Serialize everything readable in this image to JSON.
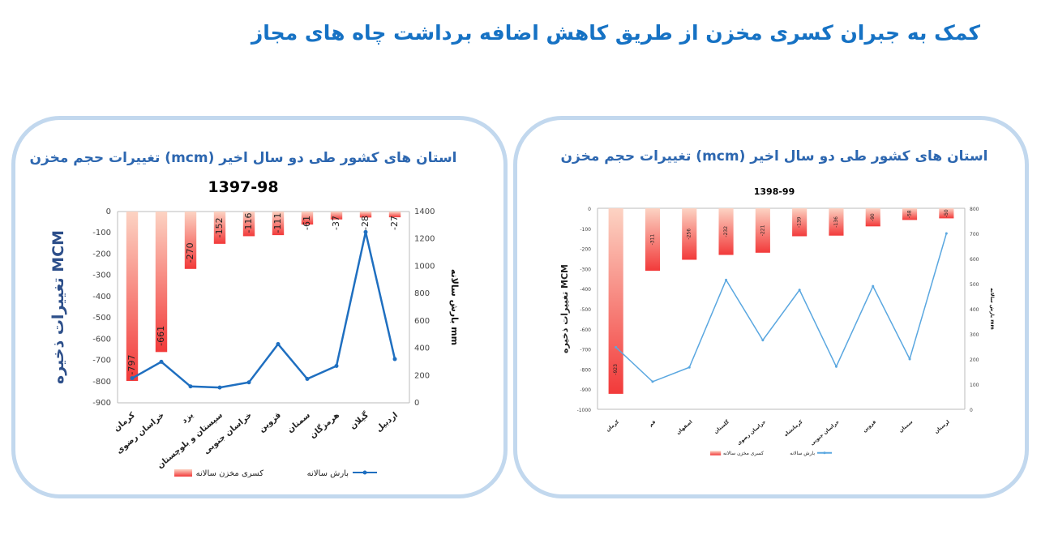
{
  "page": {
    "title": "کمک به جبران کسری مخزن از طریق کاهش اضافه برداشت چاه های مجاز"
  },
  "colors": {
    "title": "#1672c4",
    "panel_border": "#c2d8ee",
    "bar_light": "#fcd3c3",
    "bar_dark": "#f23a3a"
  },
  "chart_data": [
    {
      "type": "bar+line",
      "title": "تغییرات حجم مخزن (mcm) استان های کشور طی دو سال اخیر",
      "subtitle": "1397-98",
      "ylabel": "تغییرات ذخیره MCM",
      "y2label": "بارش سالانه mm",
      "ylim": [
        -900,
        0
      ],
      "y2lim": [
        0,
        1400
      ],
      "yticks": [
        0,
        -100,
        -200,
        -300,
        -400,
        -500,
        -600,
        -700,
        -800,
        -900
      ],
      "y2ticks": [
        1400,
        1200,
        1000,
        800,
        600,
        400,
        200,
        0
      ],
      "categories": [
        "کرمان",
        "خراسان رضوی",
        "یزد",
        "سیستان و بلوچستان",
        "خراسان جنوبی",
        "قزوین",
        "سمنان",
        "هرمزگان",
        "گیلان",
        "اردبیل"
      ],
      "series": [
        {
          "name": "کسری مخزن سالانه",
          "type": "bar",
          "values": [
            -797,
            -661,
            -270,
            -152,
            -116,
            -111,
            -61,
            -37,
            -28,
            -27
          ]
        },
        {
          "name": "بارش سالانه",
          "type": "line",
          "color": "#1f6fc0",
          "values": [
            180,
            300,
            120,
            112,
            150,
            430,
            175,
            270,
            1250,
            320
          ]
        }
      ],
      "legend": "bottom"
    },
    {
      "type": "bar+line",
      "title": "تغییرات حجم مخزن (mcm) استان های کشور طی دو سال اخیر",
      "subtitle": "1398-99",
      "ylabel": "تغییرات ذخیره MCM",
      "y2label": "بارش سالانه mm",
      "ylim": [
        -1000,
        0
      ],
      "y2lim": [
        0,
        800
      ],
      "yticks": [
        0,
        -100,
        -200,
        -300,
        -400,
        -500,
        -600,
        -700,
        -800,
        -900,
        -1000
      ],
      "y2ticks": [
        800,
        700,
        600,
        500,
        400,
        300,
        200,
        100,
        0
      ],
      "categories": [
        "کرمان",
        "قم",
        "اصفهان",
        "گلستان",
        "خراسان رضوی",
        "کرمانشاه",
        "خراسان جنوبی",
        "قزوین",
        "سمنان",
        "لرستان"
      ],
      "series": [
        {
          "name": "کسری مخزن سالانه",
          "type": "bar",
          "values": [
            -923,
            -311,
            -256,
            -232,
            -221,
            -139,
            -136,
            -90,
            -58,
            -50
          ]
        },
        {
          "name": "بارش سالانه",
          "type": "line",
          "color": "#5aa7e0",
          "values": [
            247,
            110,
            167,
            515,
            275,
            475,
            170,
            490,
            200,
            700
          ]
        }
      ],
      "legend": "bottom"
    }
  ]
}
